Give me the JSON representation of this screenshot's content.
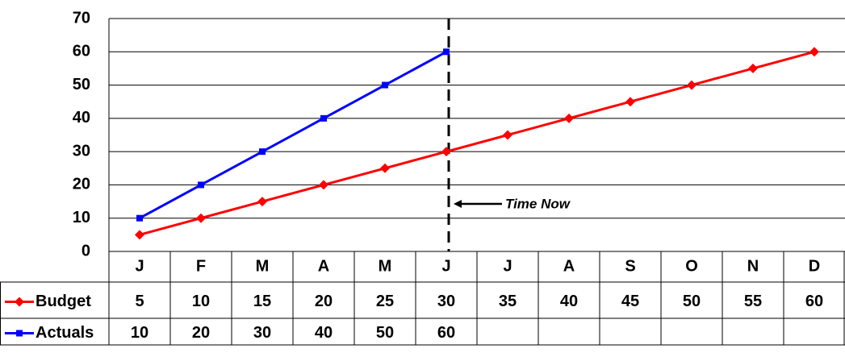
{
  "chart_data": {
    "type": "line",
    "categories": [
      "J",
      "F",
      "M",
      "A",
      "M",
      "J",
      "J",
      "A",
      "S",
      "O",
      "N",
      "D"
    ],
    "series": [
      {
        "name": "Budget",
        "color": "#ff0000",
        "marker": "diamond",
        "values": [
          5,
          10,
          15,
          20,
          25,
          30,
          35,
          40,
          45,
          50,
          55,
          60
        ]
      },
      {
        "name": "Actuals",
        "color": "#0000ff",
        "marker": "square",
        "values": [
          10,
          20,
          30,
          40,
          50,
          60,
          null,
          null,
          null,
          null,
          null,
          null
        ]
      }
    ],
    "ylim": [
      0,
      70
    ],
    "yticks": [
      0,
      10,
      20,
      30,
      40,
      50,
      60,
      70
    ],
    "grid": true,
    "annotations": [
      "Time Now"
    ]
  }
}
